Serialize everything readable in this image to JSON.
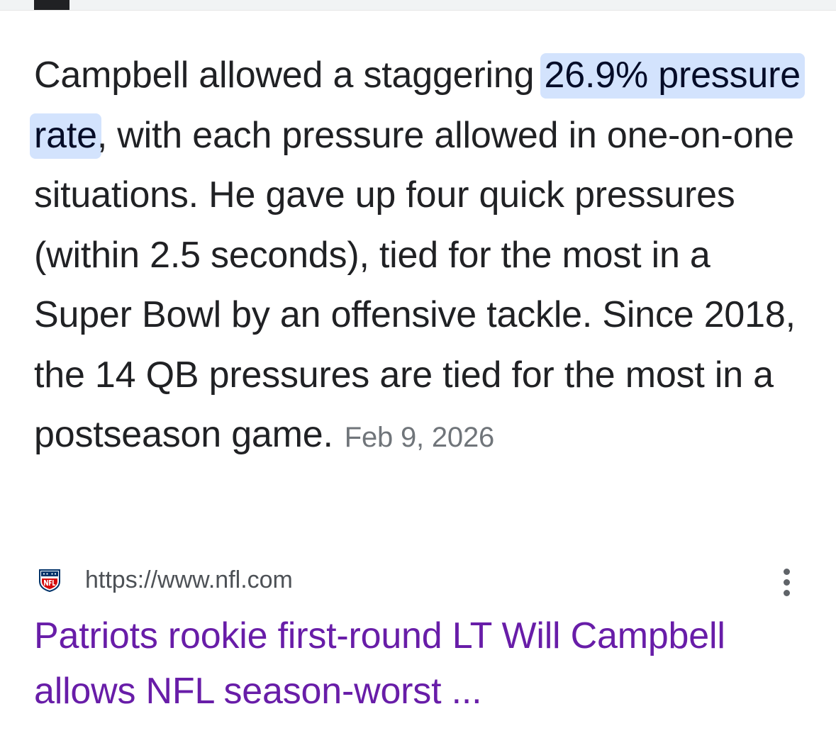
{
  "snippet": {
    "pre_highlight": "Campbell allowed a staggering ",
    "highlight": "26.9% pressure rate",
    "post_highlight": ", with each pressure allowed in one-on-one situations. He gave up four quick pressures (within 2.5 seconds), tied for the most in a Super Bowl by an offensive tackle. Since 2018, the 14 QB pressures are tied for the most in a postseason game.",
    "date": "Feb 9, 2026",
    "highlight_color": "#d3e3fd"
  },
  "result": {
    "favicon": "nfl-shield-icon",
    "source_url": "https://www.nfl.com",
    "more_options_icon": "more-vert-icon",
    "title": "Patriots rookie first-round LT Will Campbell allows NFL season-worst ...",
    "title_color": "#681da8"
  }
}
